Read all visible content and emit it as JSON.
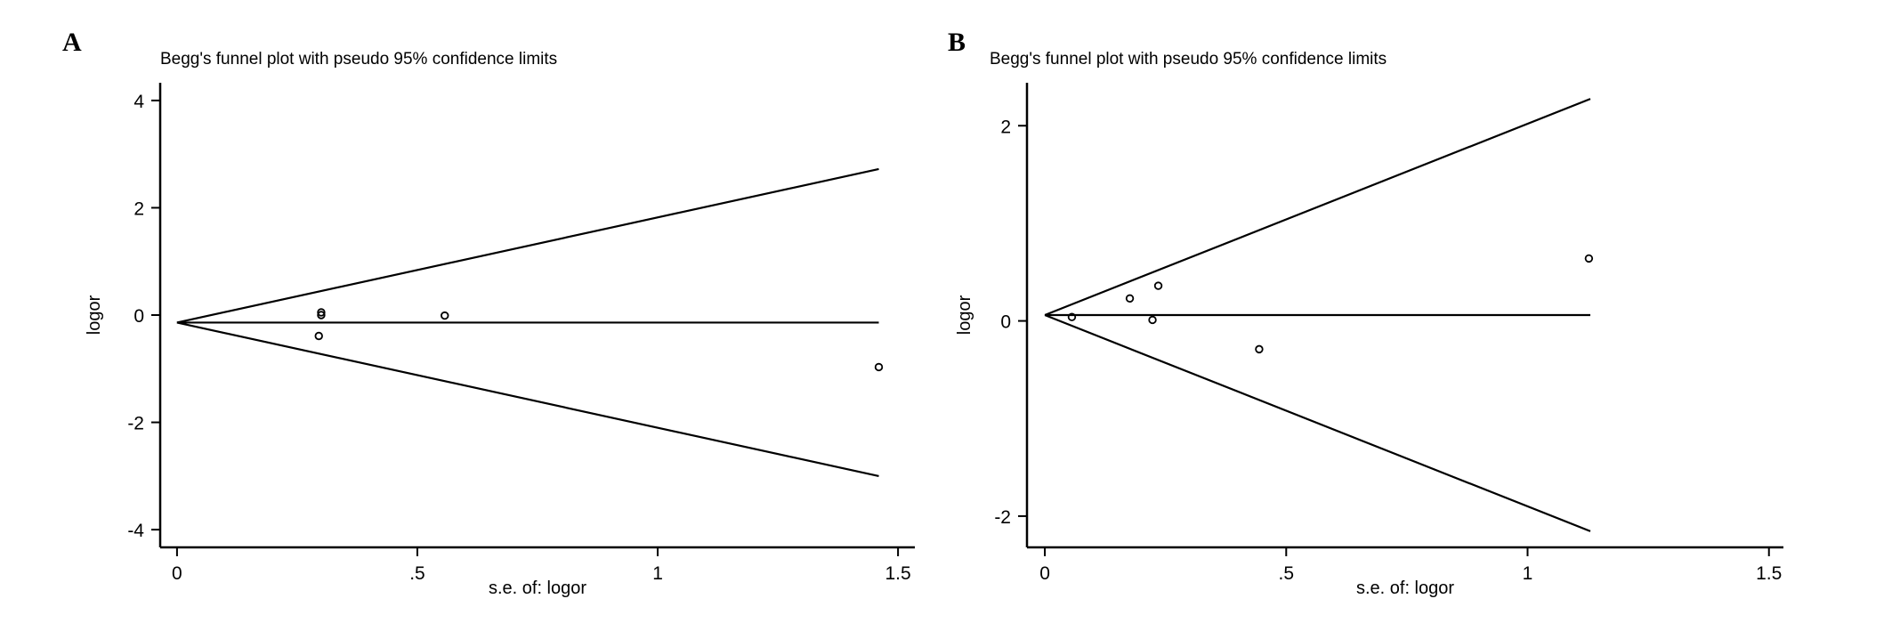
{
  "chart_data": [
    {
      "panel": "A",
      "type": "scatter",
      "title": "Begg's funnel plot with pseudo 95% confidence limits",
      "xlabel": "s.e. of: logor",
      "ylabel": "logor",
      "xlim": [
        -0.035,
        1.535
      ],
      "ylim": [
        -4.33,
        4.33
      ],
      "xticks": [
        0,
        0.5,
        1,
        1.5
      ],
      "xtick_labels": [
        "0",
        ".5",
        "1",
        "1.5"
      ],
      "yticks": [
        -4,
        -2,
        0,
        2,
        4
      ],
      "ytick_labels": [
        "-4",
        "-2",
        "0",
        "2",
        "4"
      ],
      "pooled_estimate": -0.14,
      "funnel_max_se": 1.46,
      "z": 1.96,
      "points": [
        {
          "x": 0.3,
          "y": 0.05
        },
        {
          "x": 0.3,
          "y": 0.0
        },
        {
          "x": 0.295,
          "y": -0.39
        },
        {
          "x": 0.557,
          "y": -0.01
        },
        {
          "x": 1.46,
          "y": -0.97
        }
      ],
      "grid": false,
      "legend": "none"
    },
    {
      "panel": "B",
      "type": "scatter",
      "title": "Begg's funnel plot with pseudo 95% confidence limits",
      "xlabel": "s.e. of: logor",
      "ylabel": "logor",
      "xlim": [
        -0.037,
        1.53
      ],
      "ylim": [
        -2.32,
        2.44
      ],
      "xticks": [
        0,
        0.5,
        1,
        1.5
      ],
      "xtick_labels": [
        "0",
        ".5",
        "1",
        "1.5"
      ],
      "yticks": [
        -2,
        0,
        2
      ],
      "ytick_labels": [
        "-2",
        "0",
        "2"
      ],
      "pooled_estimate": 0.06,
      "funnel_max_se": 1.13,
      "z": 1.96,
      "points": [
        {
          "x": 0.056,
          "y": 0.04
        },
        {
          "x": 0.176,
          "y": 0.23
        },
        {
          "x": 0.235,
          "y": 0.36
        },
        {
          "x": 0.223,
          "y": 0.01
        },
        {
          "x": 0.444,
          "y": -0.29
        },
        {
          "x": 1.127,
          "y": 0.64
        }
      ],
      "grid": false,
      "legend": "none"
    }
  ]
}
